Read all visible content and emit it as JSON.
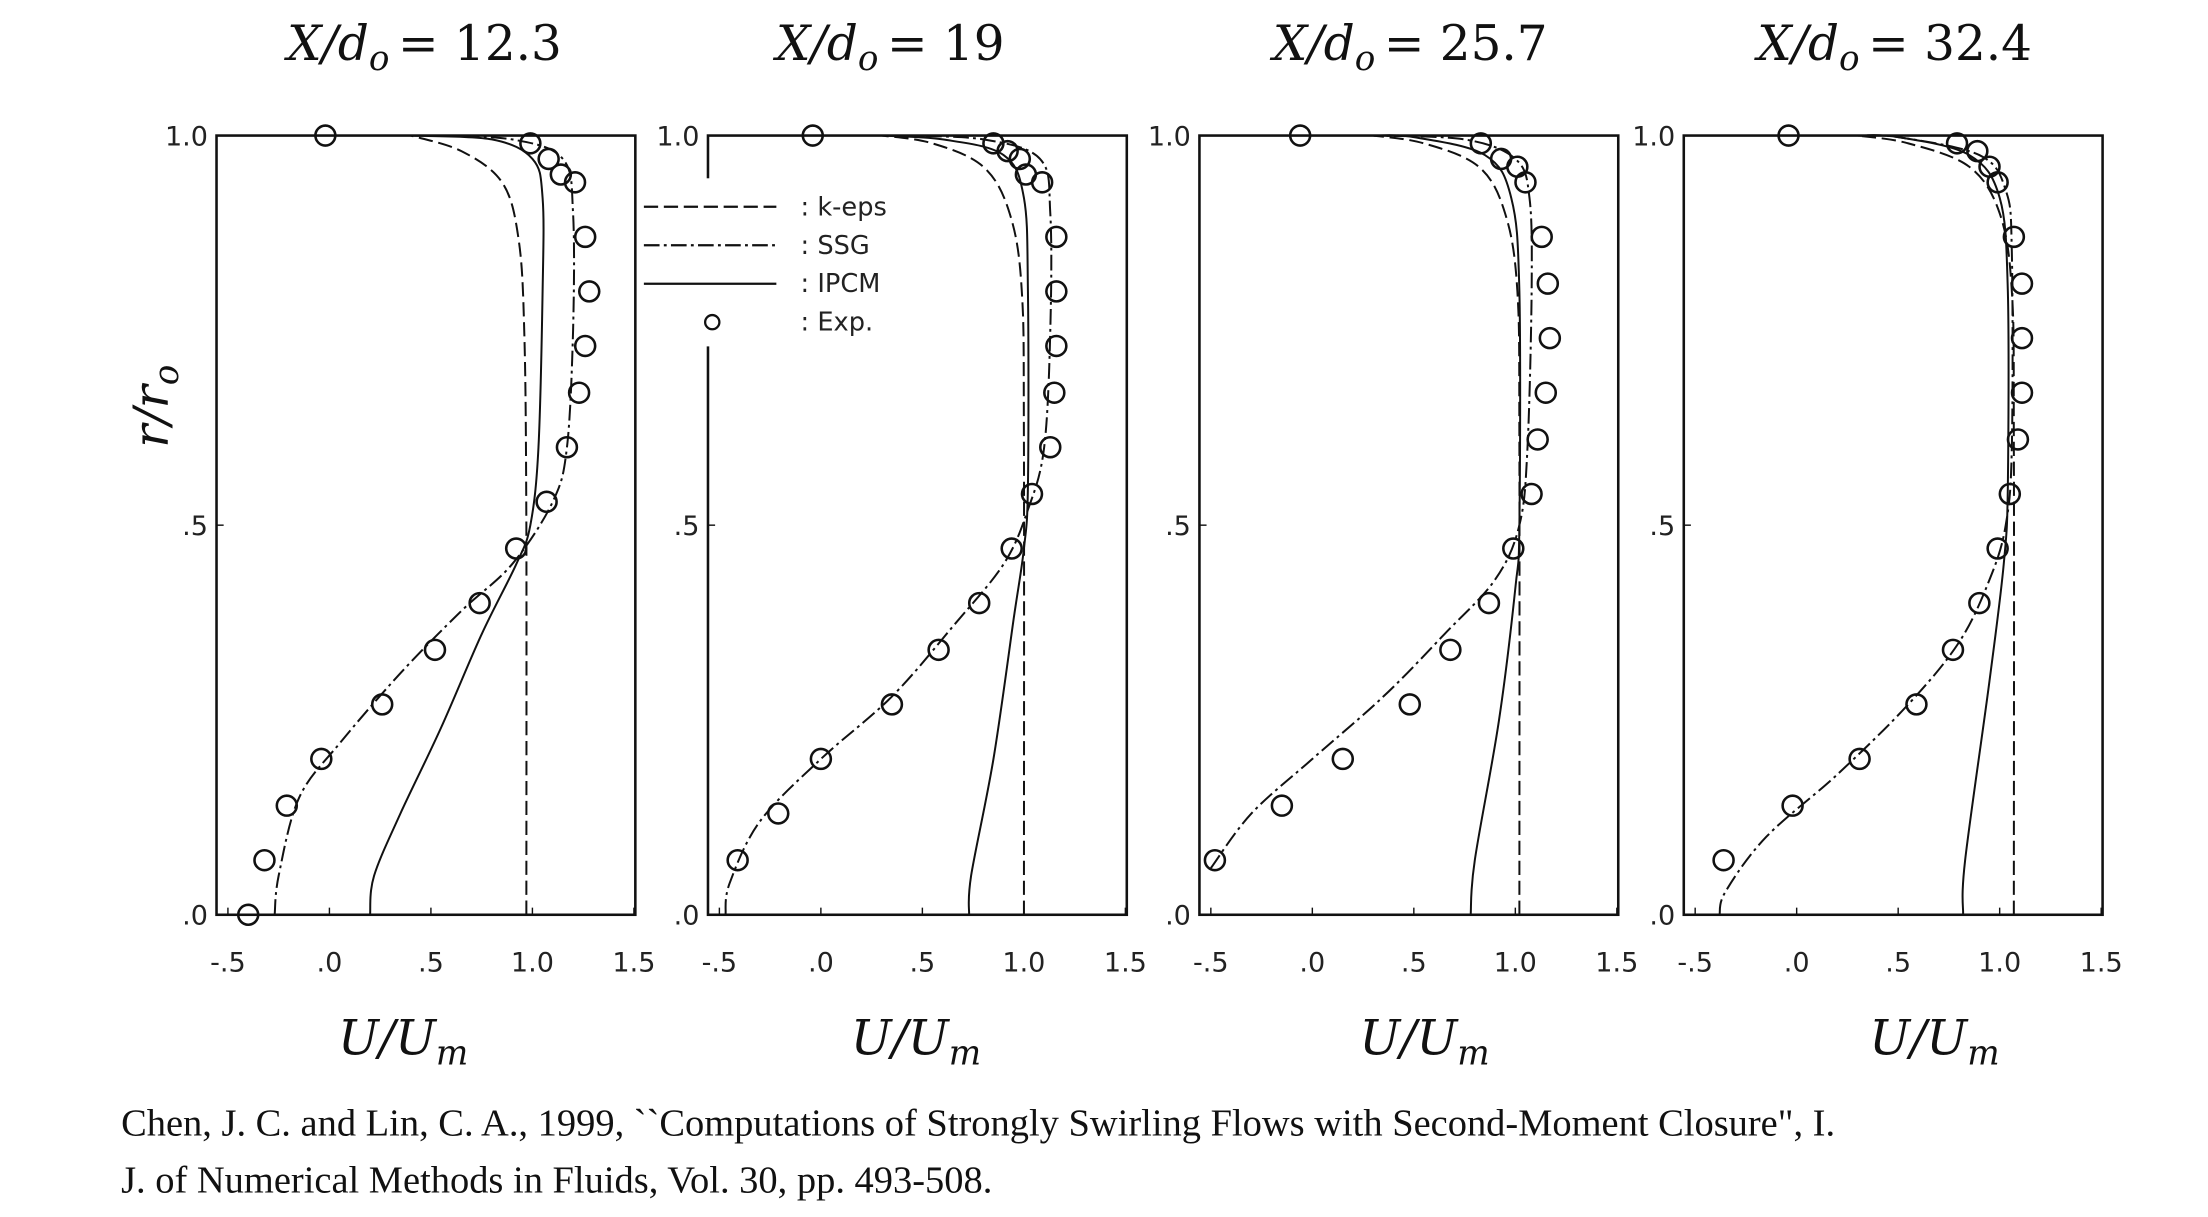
{
  "chart_data": [
    {
      "type": "line",
      "title": {
        "prefix": "X/d",
        "subscript": "o",
        "value": "= 12.3"
      },
      "xlabel": {
        "main": "U/U",
        "subscript": "m"
      },
      "ylabel": {
        "main": "r/r",
        "subscript": "o"
      },
      "xlim": [
        -0.5,
        1.5
      ],
      "ylim": [
        0,
        1
      ],
      "xticks": [
        "-.5",
        ".0",
        ".5",
        "1.0",
        "1.5"
      ],
      "xtick_values": [
        -0.5,
        0,
        0.5,
        1.0,
        1.5
      ],
      "yticks": [
        "1.0",
        ".5",
        ".0"
      ],
      "ytick_values": [
        1.0,
        0.5,
        0
      ],
      "series": [
        {
          "name": "k-eps",
          "points": [
            [
              0.97,
              0
            ],
            [
              0.97,
              0.5
            ],
            [
              0.96,
              0.75
            ],
            [
              0.93,
              0.87
            ],
            [
              0.85,
              0.94
            ],
            [
              0.65,
              0.98
            ],
            [
              0.4,
              1.0
            ]
          ]
        },
        {
          "name": "SSG",
          "points": [
            [
              -0.27,
              0
            ],
            [
              -0.25,
              0.05
            ],
            [
              -0.15,
              0.15
            ],
            [
              0.05,
              0.22
            ],
            [
              0.35,
              0.31
            ],
            [
              0.65,
              0.39
            ],
            [
              0.9,
              0.45
            ],
            [
              1.1,
              0.53
            ],
            [
              1.17,
              0.6
            ],
            [
              1.2,
              0.75
            ],
            [
              1.2,
              0.9
            ],
            [
              1.15,
              0.97
            ],
            [
              0.9,
              0.995
            ],
            [
              0.5,
              1.0
            ]
          ]
        },
        {
          "name": "IPCM",
          "points": [
            [
              0.2,
              0
            ],
            [
              0.22,
              0.05
            ],
            [
              0.35,
              0.13
            ],
            [
              0.55,
              0.24
            ],
            [
              0.75,
              0.36
            ],
            [
              0.92,
              0.45
            ],
            [
              0.99,
              0.5
            ],
            [
              1.03,
              0.6
            ],
            [
              1.05,
              0.8
            ],
            [
              1.05,
              0.92
            ],
            [
              1.0,
              0.97
            ],
            [
              0.8,
              0.995
            ],
            [
              0.4,
              1.0
            ]
          ]
        },
        {
          "name": "Exp.",
          "points": [
            [
              -0.02,
              1.0
            ],
            [
              0.99,
              0.99
            ],
            [
              1.08,
              0.97
            ],
            [
              1.14,
              0.95
            ],
            [
              1.21,
              0.94
            ],
            [
              1.26,
              0.87
            ],
            [
              1.28,
              0.8
            ],
            [
              1.26,
              0.73
            ],
            [
              1.23,
              0.67
            ],
            [
              1.17,
              0.6
            ],
            [
              1.07,
              0.53
            ],
            [
              0.92,
              0.47
            ],
            [
              0.74,
              0.4
            ],
            [
              0.52,
              0.34
            ],
            [
              0.26,
              0.27
            ],
            [
              -0.04,
              0.2
            ],
            [
              -0.21,
              0.14
            ],
            [
              -0.32,
              0.07
            ],
            [
              -0.4,
              0.0
            ]
          ]
        }
      ]
    },
    {
      "type": "line",
      "title": {
        "prefix": "X/d",
        "subscript": "o",
        "value": "= 19"
      },
      "xlabel": {
        "main": "U/U",
        "subscript": "m"
      },
      "xlim": [
        -0.5,
        1.5
      ],
      "ylim": [
        0,
        1
      ],
      "xticks": [
        "-.5",
        ".0",
        ".5",
        "1.0",
        "1.5"
      ],
      "xtick_values": [
        -0.5,
        0,
        0.5,
        1.0,
        1.5
      ],
      "yticks": [
        "1.0",
        ".5",
        ".0"
      ],
      "ytick_values": [
        1.0,
        0.5,
        0
      ],
      "series": [
        {
          "name": "k-eps",
          "points": [
            [
              1.0,
              0
            ],
            [
              1.0,
              0.6
            ],
            [
              0.99,
              0.8
            ],
            [
              0.93,
              0.9
            ],
            [
              0.8,
              0.96
            ],
            [
              0.55,
              0.99
            ],
            [
              0.3,
              1.0
            ]
          ]
        },
        {
          "name": "SSG",
          "points": [
            [
              -0.47,
              0
            ],
            [
              -0.45,
              0.04
            ],
            [
              -0.3,
              0.12
            ],
            [
              0.0,
              0.2
            ],
            [
              0.35,
              0.28
            ],
            [
              0.65,
              0.37
            ],
            [
              0.9,
              0.45
            ],
            [
              1.02,
              0.52
            ],
            [
              1.1,
              0.6
            ],
            [
              1.13,
              0.75
            ],
            [
              1.13,
              0.9
            ],
            [
              1.08,
              0.97
            ],
            [
              0.8,
              0.995
            ],
            [
              0.4,
              1.0
            ]
          ]
        },
        {
          "name": "IPCM",
          "points": [
            [
              0.73,
              0
            ],
            [
              0.74,
              0.05
            ],
            [
              0.85,
              0.2
            ],
            [
              0.95,
              0.38
            ],
            [
              1.0,
              0.47
            ],
            [
              1.02,
              0.55
            ],
            [
              1.02,
              0.8
            ],
            [
              1.0,
              0.92
            ],
            [
              0.9,
              0.975
            ],
            [
              0.6,
              0.995
            ],
            [
              0.3,
              1.0
            ]
          ]
        },
        {
          "name": "Exp.",
          "points": [
            [
              -0.04,
              1.0
            ],
            [
              0.85,
              0.99
            ],
            [
              0.92,
              0.98
            ],
            [
              0.98,
              0.97
            ],
            [
              1.01,
              0.95
            ],
            [
              1.09,
              0.94
            ],
            [
              1.16,
              0.87
            ],
            [
              1.16,
              0.8
            ],
            [
              1.16,
              0.73
            ],
            [
              1.15,
              0.67
            ],
            [
              1.13,
              0.6
            ],
            [
              1.04,
              0.54
            ],
            [
              0.94,
              0.47
            ],
            [
              0.78,
              0.4
            ],
            [
              0.58,
              0.34
            ],
            [
              0.35,
              0.27
            ],
            [
              0.0,
              0.2
            ],
            [
              -0.21,
              0.13
            ],
            [
              -0.41,
              0.07
            ]
          ]
        }
      ]
    },
    {
      "type": "line",
      "title": {
        "prefix": "X/d",
        "subscript": "o",
        "value": "= 25.7"
      },
      "xlabel": {
        "main": "U/U",
        "subscript": "m"
      },
      "xlim": [
        -0.5,
        1.5
      ],
      "ylim": [
        0,
        1
      ],
      "xticks": [
        "-.5",
        ".0",
        ".5",
        "1.0",
        "1.5"
      ],
      "xtick_values": [
        -0.5,
        0,
        0.5,
        1.0,
        1.5
      ],
      "yticks": [
        "1.0",
        ".5",
        ".0"
      ],
      "ytick_values": [
        1.0,
        0.5,
        0
      ],
      "series": [
        {
          "name": "k-eps",
          "points": [
            [
              1.02,
              0
            ],
            [
              1.02,
              0.6
            ],
            [
              1.01,
              0.8
            ],
            [
              0.95,
              0.9
            ],
            [
              0.82,
              0.96
            ],
            [
              0.55,
              0.99
            ],
            [
              0.3,
              1.0
            ]
          ]
        },
        {
          "name": "SSG",
          "points": [
            [
              -0.5,
              0.06
            ],
            [
              -0.3,
              0.13
            ],
            [
              0.0,
              0.2
            ],
            [
              0.35,
              0.28
            ],
            [
              0.65,
              0.36
            ],
            [
              0.9,
              0.43
            ],
            [
              1.02,
              0.5
            ],
            [
              1.06,
              0.6
            ],
            [
              1.08,
              0.8
            ],
            [
              1.07,
              0.92
            ],
            [
              1.0,
              0.97
            ],
            [
              0.75,
              0.995
            ],
            [
              0.3,
              1.0
            ]
          ]
        },
        {
          "name": "IPCM",
          "points": [
            [
              0.78,
              0
            ],
            [
              0.8,
              0.07
            ],
            [
              0.92,
              0.25
            ],
            [
              1.0,
              0.42
            ],
            [
              1.02,
              0.5
            ],
            [
              1.02,
              0.8
            ],
            [
              0.98,
              0.92
            ],
            [
              0.85,
              0.975
            ],
            [
              0.5,
              0.998
            ],
            [
              0.3,
              1.0
            ]
          ]
        },
        {
          "name": "Exp.",
          "points": [
            [
              -0.06,
              1.0
            ],
            [
              0.83,
              0.99
            ],
            [
              0.93,
              0.97
            ],
            [
              1.01,
              0.96
            ],
            [
              1.05,
              0.94
            ],
            [
              1.13,
              0.87
            ],
            [
              1.16,
              0.81
            ],
            [
              1.17,
              0.74
            ],
            [
              1.15,
              0.67
            ],
            [
              1.11,
              0.61
            ],
            [
              1.08,
              0.54
            ],
            [
              0.99,
              0.47
            ],
            [
              0.87,
              0.4
            ],
            [
              0.68,
              0.34
            ],
            [
              0.48,
              0.27
            ],
            [
              0.15,
              0.2
            ],
            [
              -0.15,
              0.14
            ],
            [
              -0.48,
              0.07
            ]
          ]
        }
      ]
    },
    {
      "type": "line",
      "title": {
        "prefix": "X/d",
        "subscript": "o",
        "value": "= 32.4"
      },
      "xlabel": {
        "main": "U/U",
        "subscript": "m"
      },
      "xlim": [
        -0.5,
        1.5
      ],
      "ylim": [
        0,
        1
      ],
      "xticks": [
        "-.5",
        ".0",
        ".5",
        "1.0",
        "1.5"
      ],
      "xtick_values": [
        -0.5,
        0,
        0.5,
        1.0,
        1.5
      ],
      "yticks": [
        "1.0",
        ".5",
        ".0"
      ],
      "ytick_values": [
        1.0,
        0.5,
        0
      ],
      "series": [
        {
          "name": "k-eps",
          "points": [
            [
              1.07,
              0
            ],
            [
              1.07,
              0.6
            ],
            [
              1.06,
              0.8
            ],
            [
              1.0,
              0.9
            ],
            [
              0.85,
              0.96
            ],
            [
              0.55,
              0.99
            ],
            [
              0.3,
              1.0
            ]
          ]
        },
        {
          "name": "SSG",
          "points": [
            [
              -0.38,
              0
            ],
            [
              -0.35,
              0.03
            ],
            [
              -0.15,
              0.1
            ],
            [
              0.2,
              0.18
            ],
            [
              0.55,
              0.27
            ],
            [
              0.8,
              0.35
            ],
            [
              0.95,
              0.43
            ],
            [
              1.03,
              0.5
            ],
            [
              1.06,
              0.6
            ],
            [
              1.06,
              0.85
            ],
            [
              1.03,
              0.93
            ],
            [
              0.9,
              0.975
            ],
            [
              0.5,
              0.998
            ],
            [
              0.3,
              1.0
            ]
          ]
        },
        {
          "name": "IPCM",
          "points": [
            [
              0.82,
              0
            ],
            [
              0.83,
              0.07
            ],
            [
              0.95,
              0.3
            ],
            [
              1.02,
              0.45
            ],
            [
              1.04,
              0.55
            ],
            [
              1.04,
              0.8
            ],
            [
              1.0,
              0.92
            ],
            [
              0.85,
              0.975
            ],
            [
              0.5,
              0.998
            ],
            [
              0.3,
              1.0
            ]
          ]
        },
        {
          "name": "Exp.",
          "points": [
            [
              -0.04,
              1.0
            ],
            [
              0.79,
              0.99
            ],
            [
              0.89,
              0.98
            ],
            [
              0.95,
              0.96
            ],
            [
              0.99,
              0.94
            ],
            [
              1.07,
              0.87
            ],
            [
              1.11,
              0.81
            ],
            [
              1.11,
              0.74
            ],
            [
              1.11,
              0.67
            ],
            [
              1.09,
              0.61
            ],
            [
              1.05,
              0.54
            ],
            [
              0.99,
              0.47
            ],
            [
              0.9,
              0.4
            ],
            [
              0.77,
              0.34
            ],
            [
              0.59,
              0.27
            ],
            [
              0.31,
              0.2
            ],
            [
              -0.02,
              0.14
            ],
            [
              -0.36,
              0.07
            ]
          ]
        }
      ]
    }
  ],
  "legend": {
    "placement": "between-panels-1-2-top",
    "entries": [
      {
        "label": ": k-eps",
        "style": "dashed"
      },
      {
        "label": ": SSG",
        "style": "dash-dot"
      },
      {
        "label": ": IPCM",
        "style": "solid"
      },
      {
        "label": ": Exp.",
        "style": "circle"
      }
    ]
  },
  "caption": {
    "lines": [
      "Chen, J. C. and Lin, C. A., 1999, ``Computations of Strongly Swirling Flows with Second-Moment Closure\", I.",
      "J. of Numerical Methods in Fluids, Vol. 30, pp. 493-508."
    ]
  },
  "colors": {
    "ink": "#111111",
    "background": "#ffffff"
  }
}
